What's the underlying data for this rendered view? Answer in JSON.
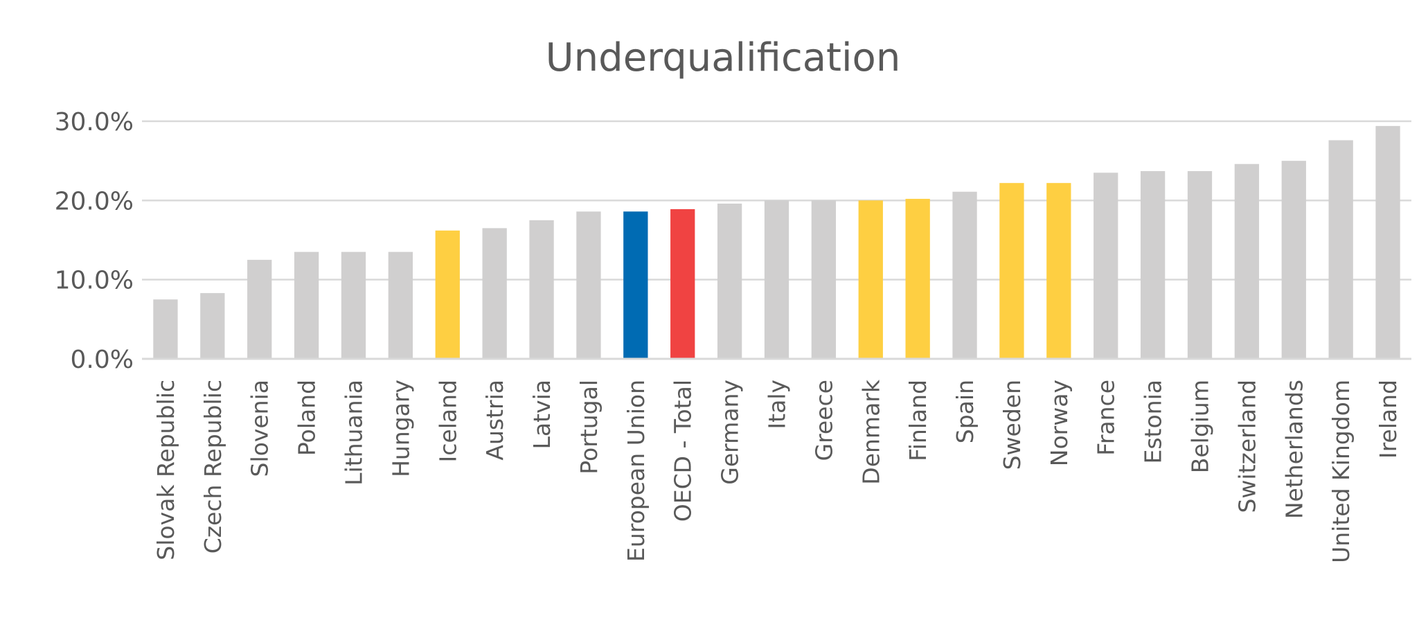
{
  "chart_data": {
    "type": "bar",
    "title": "Underqualification",
    "xlabel": "",
    "ylabel": "",
    "ylim": [
      0,
      30
    ],
    "yticks": [
      0,
      10,
      20,
      30
    ],
    "ytick_labels": [
      "0.0%",
      "10.0%",
      "20.0%",
      "30.0%"
    ],
    "grid": true,
    "legend": "none",
    "default_color": "#d0cfcf",
    "categories": [
      "Slovak Republic",
      "Czech Republic",
      "Slovenia",
      "Poland",
      "Lithuania",
      "Hungary",
      "Iceland",
      "Austria",
      "Latvia",
      "Portugal",
      "European Union",
      "OECD - Total",
      "Germany",
      "Italy",
      "Greece",
      "Denmark",
      "Finland",
      "Spain",
      "Sweden",
      "Norway",
      "France",
      "Estonia",
      "Belgium",
      "Switzerland",
      "Netherlands",
      "United Kingdom",
      "Ireland"
    ],
    "values": [
      7.5,
      8.3,
      12.5,
      13.5,
      13.5,
      13.5,
      16.2,
      16.5,
      17.5,
      18.6,
      18.6,
      18.9,
      19.6,
      20.0,
      20.0,
      20.0,
      20.2,
      21.1,
      22.2,
      22.2,
      23.5,
      23.7,
      23.7,
      24.6,
      25.0,
      27.6,
      29.4
    ],
    "colors": [
      "#d0cfcf",
      "#d0cfcf",
      "#d0cfcf",
      "#d0cfcf",
      "#d0cfcf",
      "#d0cfcf",
      "#fecf42",
      "#d0cfcf",
      "#d0cfcf",
      "#d0cfcf",
      "#006bb3",
      "#f04342",
      "#d0cfcf",
      "#d0cfcf",
      "#d0cfcf",
      "#fecf42",
      "#fecf42",
      "#d0cfcf",
      "#fecf42",
      "#fecf42",
      "#d0cfcf",
      "#d0cfcf",
      "#d0cfcf",
      "#d0cfcf",
      "#d0cfcf",
      "#d0cfcf",
      "#d0cfcf"
    ]
  }
}
